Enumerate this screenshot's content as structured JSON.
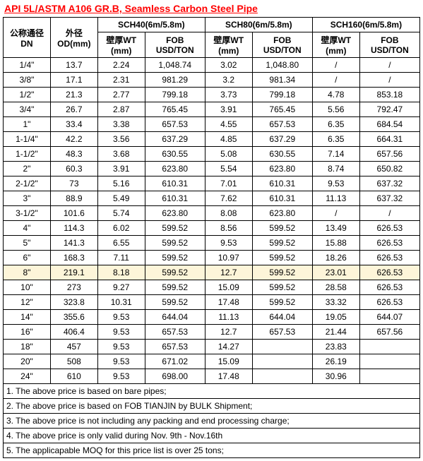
{
  "title": "API 5L/ASTM A106 GR.B, Seamless Carbon Steel Pipe",
  "headers": {
    "dn1": "公称通径",
    "dn2": "DN",
    "od1": "外径",
    "od2": "OD(mm)",
    "sch40": "SCH40(6m/5.8m)",
    "sch80": "SCH80(6m/5.8m)",
    "sch160": "SCH160(6m/5.8m)",
    "wt1": "壁厚WT",
    "wt2": "(mm)",
    "fob1": "FOB",
    "fob2": "USD/TON"
  },
  "rows": [
    {
      "dn": "1/4\"",
      "od": "13.7",
      "wt40": "2.24",
      "fob40": "1,048.74",
      "wt80": "3.02",
      "fob80": "1,048.80",
      "wt160": "/",
      "fob160": "/"
    },
    {
      "dn": "3/8\"",
      "od": "17.1",
      "wt40": "2.31",
      "fob40": "981.29",
      "wt80": "3.2",
      "fob80": "981.34",
      "wt160": "/",
      "fob160": "/"
    },
    {
      "dn": "1/2\"",
      "od": "21.3",
      "wt40": "2.77",
      "fob40": "799.18",
      "wt80": "3.73",
      "fob80": "799.18",
      "wt160": "4.78",
      "fob160": "853.18"
    },
    {
      "dn": "3/4\"",
      "od": "26.7",
      "wt40": "2.87",
      "fob40": "765.45",
      "wt80": "3.91",
      "fob80": "765.45",
      "wt160": "5.56",
      "fob160": "792.47"
    },
    {
      "dn": "1\"",
      "od": "33.4",
      "wt40": "3.38",
      "fob40": "657.53",
      "wt80": "4.55",
      "fob80": "657.53",
      "wt160": "6.35",
      "fob160": "684.54"
    },
    {
      "dn": "1-1/4\"",
      "od": "42.2",
      "wt40": "3.56",
      "fob40": "637.29",
      "wt80": "4.85",
      "fob80": "637.29",
      "wt160": "6.35",
      "fob160": "664.31"
    },
    {
      "dn": "1-1/2\"",
      "od": "48.3",
      "wt40": "3.68",
      "fob40": "630.55",
      "wt80": "5.08",
      "fob80": "630.55",
      "wt160": "7.14",
      "fob160": "657.56"
    },
    {
      "dn": "2\"",
      "od": "60.3",
      "wt40": "3.91",
      "fob40": "623.80",
      "wt80": "5.54",
      "fob80": "623.80",
      "wt160": "8.74",
      "fob160": "650.82"
    },
    {
      "dn": "2-1/2\"",
      "od": "73",
      "wt40": "5.16",
      "fob40": "610.31",
      "wt80": "7.01",
      "fob80": "610.31",
      "wt160": "9.53",
      "fob160": "637.32"
    },
    {
      "dn": "3\"",
      "od": "88.9",
      "wt40": "5.49",
      "fob40": "610.31",
      "wt80": "7.62",
      "fob80": "610.31",
      "wt160": "11.13",
      "fob160": "637.32"
    },
    {
      "dn": "3-1/2\"",
      "od": "101.6",
      "wt40": "5.74",
      "fob40": "623.80",
      "wt80": "8.08",
      "fob80": "623.80",
      "wt160": "/",
      "fob160": "/"
    },
    {
      "dn": "4\"",
      "od": "114.3",
      "wt40": "6.02",
      "fob40": "599.52",
      "wt80": "8.56",
      "fob80": "599.52",
      "wt160": "13.49",
      "fob160": "626.53"
    },
    {
      "dn": "5\"",
      "od": "141.3",
      "wt40": "6.55",
      "fob40": "599.52",
      "wt80": "9.53",
      "fob80": "599.52",
      "wt160": "15.88",
      "fob160": "626.53"
    },
    {
      "dn": "6\"",
      "od": "168.3",
      "wt40": "7.11",
      "fob40": "599.52",
      "wt80": "10.97",
      "fob80": "599.52",
      "wt160": "18.26",
      "fob160": "626.53"
    },
    {
      "dn": "8\"",
      "od": "219.1",
      "wt40": "8.18",
      "fob40": "599.52",
      "wt80": "12.7",
      "fob80": "599.52",
      "wt160": "23.01",
      "fob160": "626.53",
      "hl": true
    },
    {
      "dn": "10\"",
      "od": "273",
      "wt40": "9.27",
      "fob40": "599.52",
      "wt80": "15.09",
      "fob80": "599.52",
      "wt160": "28.58",
      "fob160": "626.53"
    },
    {
      "dn": "12\"",
      "od": "323.8",
      "wt40": "10.31",
      "fob40": "599.52",
      "wt80": "17.48",
      "fob80": "599.52",
      "wt160": "33.32",
      "fob160": "626.53"
    },
    {
      "dn": "14\"",
      "od": "355.6",
      "wt40": "9.53",
      "fob40": "644.04",
      "wt80": "11.13",
      "fob80": "644.04",
      "wt160": "19.05",
      "fob160": "644.07"
    },
    {
      "dn": "16\"",
      "od": "406.4",
      "wt40": "9.53",
      "fob40": "657.53",
      "wt80": "12.7",
      "fob80": "657.53",
      "wt160": "21.44",
      "fob160": "657.56"
    },
    {
      "dn": "18\"",
      "od": "457",
      "wt40": "9.53",
      "fob40": "657.53",
      "wt80": "14.27",
      "fob80": "",
      "wt160": "23.83",
      "fob160": ""
    },
    {
      "dn": "20\"",
      "od": "508",
      "wt40": "9.53",
      "fob40": "671.02",
      "wt80": "15.09",
      "fob80": "",
      "wt160": "26.19",
      "fob160": ""
    },
    {
      "dn": "24\"",
      "od": "610",
      "wt40": "9.53",
      "fob40": "698.00",
      "wt80": "17.48",
      "fob80": "",
      "wt160": "30.96",
      "fob160": ""
    }
  ],
  "notes": [
    "1. The above price is based on bare pipes;",
    "2. The above price is based on FOB TIANJIN by BULK Shipment;",
    "3. The above price is not including any packing and end processing charge;",
    "4. The above price is only valid during Nov. 9th - Nov.16th",
    "5. The applicapable MOQ for this price list is over 25 tons;"
  ]
}
